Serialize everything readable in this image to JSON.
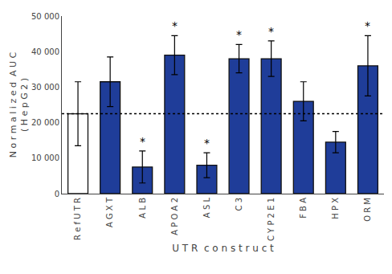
{
  "chart_data": {
    "type": "bar",
    "categories": [
      "R e f U T R",
      "A G X T",
      "A L B",
      "A P O A 2",
      "A S L",
      "C 3",
      "C Y P 2 E 1",
      "F B A",
      "H P X",
      "O R M"
    ],
    "values": [
      22500,
      31500,
      7500,
      39000,
      8000,
      38000,
      38000,
      26000,
      14500,
      36000
    ],
    "errors": [
      9000,
      7000,
      4500,
      5500,
      3500,
      4000,
      5000,
      5500,
      3000,
      8500
    ],
    "colors": [
      "white",
      "#1f3d99",
      "#1f3d99",
      "#1f3d99",
      "#1f3d99",
      "#1f3d99",
      "#1f3d99",
      "#1f3d99",
      "#1f3d99",
      "#1f3d99"
    ],
    "ref_line": 22500,
    "annotations": [
      {
        "category": "A L B",
        "text": "*"
      },
      {
        "category": "A P O A 2",
        "text": "*"
      },
      {
        "category": "A S L",
        "text": "*"
      },
      {
        "category": "C 3",
        "text": "*"
      },
      {
        "category": "C Y P 2 E 1",
        "text": "*"
      },
      {
        "category": "O R M",
        "text": "*"
      }
    ],
    "ylabel": "N o r m a l i z e d  A U C\n( H e p G 2 )",
    "xlabel": "U T R  c o n s t r u c t",
    "ylim": [
      0,
      50000
    ],
    "yticks": [
      0,
      {
        "value": 10000,
        "label": "10 000"
      },
      {
        "value": 20000,
        "label": "20 000"
      },
      {
        "value": 30000,
        "label": "30 000"
      },
      {
        "value": 40000,
        "label": "40 000"
      },
      {
        "value": 50000,
        "label": "50 000"
      }
    ],
    "grid": false
  }
}
